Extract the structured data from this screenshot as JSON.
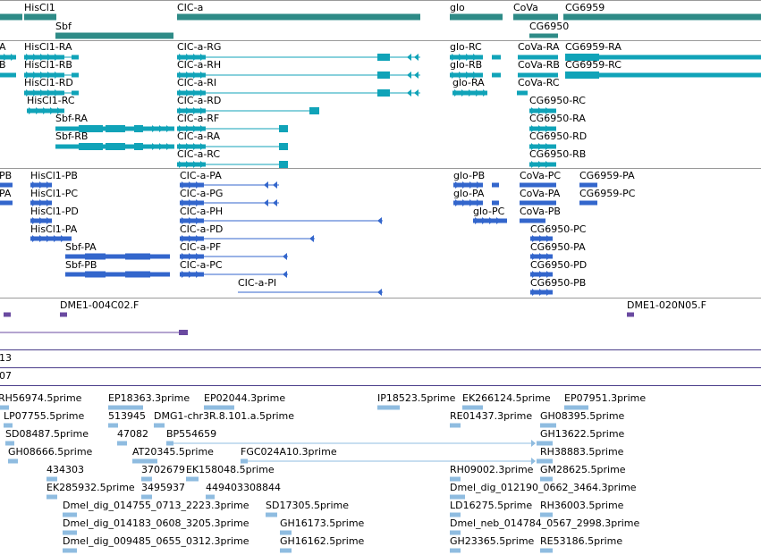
{
  "colors": {
    "gene": "#2e8b87",
    "transcript": "#10a3b8",
    "protein": "#3366cc",
    "clone": "#6a4aa0",
    "est": "#8fbce0"
  },
  "gene_labels": [
    "HisCl1",
    "CIC-a",
    "glo",
    "CoVa",
    "CG6959",
    "Sbf",
    "CG6950"
  ],
  "transcript_labels": [
    "A",
    "B",
    "HisCl1-RA",
    "HisCl1-RB",
    "HisCl1-RD",
    "HisCl1-RC",
    "Sbf-RA",
    "Sbf-RB",
    "CIC-a-RG",
    "CIC-a-RH",
    "CIC-a-RI",
    "CIC-a-RD",
    "CIC-a-RF",
    "CIC-a-RA",
    "CIC-a-RC",
    "glo-RC",
    "glo-RB",
    "glo-RA",
    "CoVa-RA",
    "CoVa-RB",
    "CoVa-RC",
    "CG6959-RA",
    "CG6959-RC",
    "CG6950-RC",
    "CG6950-RA",
    "CG6950-RD",
    "CG6950-RB"
  ],
  "protein_labels": [
    "PB",
    "PA",
    "HisCl1-PB",
    "HisCl1-PC",
    "HisCl1-PD",
    "HisCl1-PA",
    "Sbf-PA",
    "Sbf-PB",
    "CIC-a-PA",
    "CIC-a-PG",
    "CIC-a-PH",
    "CIC-a-PD",
    "CIC-a-PF",
    "CIC-a-PC",
    "CIC-a-PI",
    "glo-PB",
    "glo-PA",
    "glo-PC",
    "CoVa-PC",
    "CoVa-PA",
    "CoVa-PB",
    "CG6959-PA",
    "CG6959-PC",
    "CG6950-PC",
    "CG6950-PA",
    "CG6950-PD",
    "CG6950-PB"
  ],
  "clone_labels": [
    "DME1-004C02.F",
    "DME1-020N05.F"
  ],
  "track_labels": [
    "13",
    "07"
  ],
  "est_labels": [
    "RH56974.5prime",
    "EP18363.3prime",
    "EP02044.3prime",
    "IP18523.5prime",
    "EK266124.5prime",
    "EP07951.3prime",
    "LP07755.5prime",
    "513945",
    "DMG1-chr3R.8.101.a.5prime",
    "RE01437.3prime",
    "GH08395.5prime",
    "SD08487.5prime",
    "47082",
    "BP554659",
    "GH13622.5prime",
    "GH08666.5prime",
    "AT20345.5prime",
    "FGC024A10.3prime",
    "RH38883.5prime",
    "434303",
    "3702679",
    "EK158048.5prime",
    "RH09002.3prime",
    "GM28625.5prime",
    "EK285932.5prime",
    "3495937",
    "449403308844",
    "Dmel_dig_012190_0662_3464.3prime",
    "Dmel_dig_014755_0713_2223.3prime",
    "SD17305.5prime",
    "LD16275.5prime",
    "RH36003.5prime",
    "Dmel_dig_014183_0608_3205.3prime",
    "GH16173.5prime",
    "Dmel_neb_014784_0567_2998.3prime",
    "Dmel_dig_009485_0655_0312.3prime",
    "GH16162.5prime",
    "GH23365.5prime",
    "RE53186.5prime"
  ]
}
